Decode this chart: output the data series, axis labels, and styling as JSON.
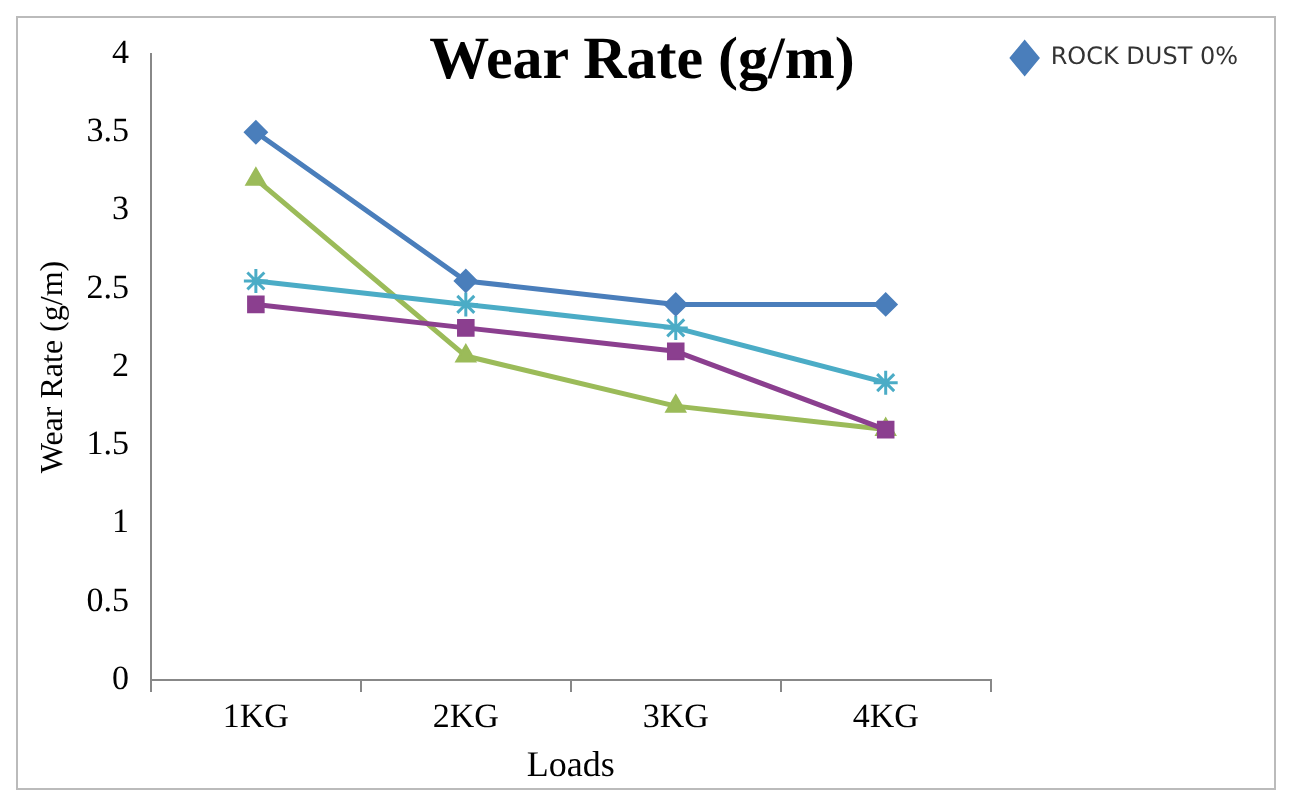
{
  "chart_data": {
    "type": "line",
    "title": "Wear Rate (g/m)",
    "xlabel": "Loads",
    "ylabel": "Wear Rate (g/m)",
    "categories": [
      "1KG",
      "2KG",
      "3KG",
      "4KG"
    ],
    "series": [
      {
        "name": "ROCK DUST 0%",
        "color": "#4a7ebb",
        "marker": "diamond",
        "values": [
          3.5,
          2.55,
          2.4,
          2.4
        ]
      },
      {
        "color": "#4bacc6",
        "marker": "cross",
        "values": [
          2.55,
          2.4,
          2.25,
          1.9
        ]
      },
      {
        "color": "#8b3f8f",
        "marker": "square",
        "values": [
          2.4,
          2.25,
          2.1,
          1.6
        ]
      },
      {
        "color": "#9bbb59",
        "marker": "triangle",
        "values": [
          3.2,
          2.07,
          1.75,
          1.6
        ]
      }
    ],
    "ylim": [
      0,
      4
    ],
    "yticks": [
      0,
      0.5,
      1,
      1.5,
      2,
      2.5,
      3,
      3.5,
      4
    ],
    "legend": "top right",
    "line_style": "solid"
  }
}
